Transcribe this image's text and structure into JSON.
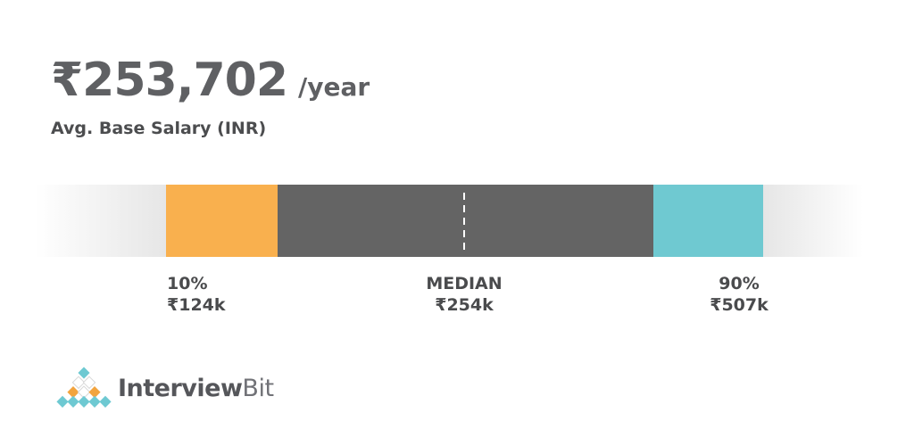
{
  "header": {
    "salary": "₹253,702",
    "period": "/year",
    "subtitle": "Avg. Base Salary (INR)"
  },
  "chart_data": {
    "type": "bar",
    "kind": "salary-percentile-range",
    "title": "₹253,702 /year",
    "subtitle": "Avg. Base Salary (INR)",
    "currency": "INR",
    "average_base_salary": 253702,
    "percentiles": [
      {
        "percentile": "10%",
        "display": "₹124k",
        "value": 124000
      },
      {
        "percentile": "MEDIAN",
        "display": "₹254k",
        "value": 254000
      },
      {
        "percentile": "90%",
        "display": "₹507k",
        "value": 507000
      }
    ],
    "segments": [
      {
        "name": "below-10th-fade",
        "color": "#e6e6e6"
      },
      {
        "name": "10th-percentile-band",
        "color": "#f9b04e"
      },
      {
        "name": "middle-band",
        "color": "#646464"
      },
      {
        "name": "90th-percentile-band",
        "color": "#6fc9d1"
      },
      {
        "name": "above-90th-fade",
        "color": "#e6e6e6"
      }
    ],
    "median_marker": {
      "style": "dashed-vertical-line",
      "color": "#ffffff"
    },
    "legend_position": "below-bar",
    "grid": false
  },
  "labels": {
    "p10": {
      "line1": "10%",
      "line2": "₹124k"
    },
    "median": {
      "line1": "MEDIAN",
      "line2": "₹254k"
    },
    "p90": {
      "line1": "90%",
      "line2": "₹507k"
    }
  },
  "footer": {
    "brand_part1": "Interview",
    "brand_part2": "Bit",
    "logo_colors": {
      "teal": "#6ec9d2",
      "orange": "#f2a43e",
      "white": "#ffffff",
      "stroke": "#d8d8d8"
    },
    "logo_pyramid": [
      [
        "teal"
      ],
      [
        "white",
        "white"
      ],
      [
        "orange",
        "white",
        "orange"
      ],
      [
        "teal",
        "teal",
        "teal",
        "teal",
        "teal"
      ]
    ]
  }
}
